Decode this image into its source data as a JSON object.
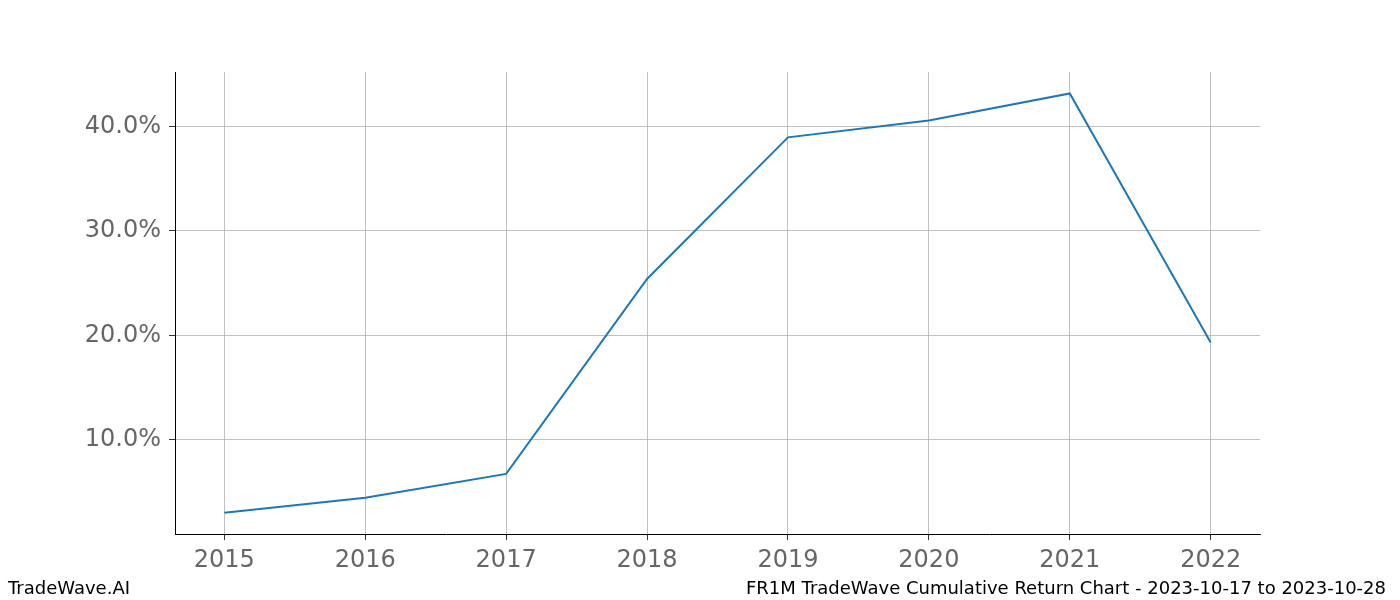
{
  "chart_data": {
    "type": "line",
    "footer_left": "TradeWave.AI",
    "footer_right": "FR1M TradeWave Cumulative Return Chart - 2023-10-17 to 2023-10-28",
    "x": [
      2015,
      2016,
      2017,
      2018,
      2019,
      2020,
      2021,
      2022
    ],
    "values": [
      3.03,
      4.46,
      6.75,
      25.4,
      38.95,
      40.57,
      43.15,
      19.33
    ],
    "color": "#1f77b4",
    "xlim": [
      2014.65,
      2022.35
    ],
    "xticks": [
      2015,
      2016,
      2017,
      2018,
      2019,
      2020,
      2021,
      2022
    ],
    "ylim": [
      1.0,
      45.2
    ],
    "yticks": [
      {
        "value": 10,
        "label": "10.0%"
      },
      {
        "value": 20,
        "label": "20.0%"
      },
      {
        "value": 30,
        "label": "30.0%"
      },
      {
        "value": 40,
        "label": "40.0%"
      }
    ],
    "grid": true
  }
}
